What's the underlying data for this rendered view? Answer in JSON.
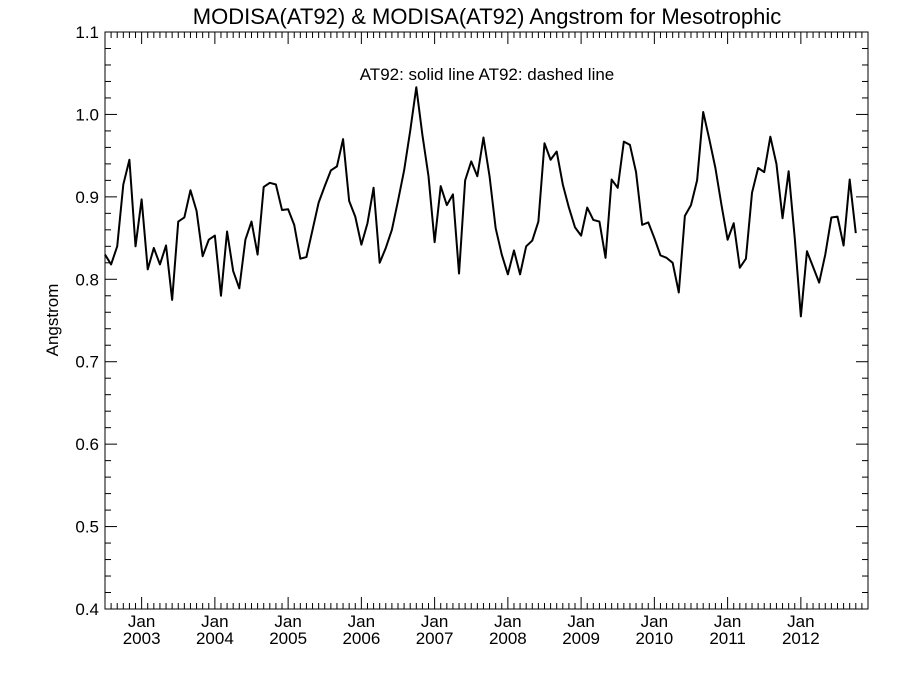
{
  "chart_data": {
    "type": "line",
    "title": "MODISA(AT92) & MODISA(AT92)  Angstrom for Mesotrophic",
    "xlabel": "",
    "ylabel": "Angstrom",
    "annotation": "AT92: solid line    AT92: dashed line",
    "ylim": [
      0.4,
      1.1
    ],
    "xlim": [
      "2002-07",
      "2012-12"
    ],
    "y_ticks": [
      "0.4",
      "0.5",
      "0.6",
      "0.7",
      "0.8",
      "0.9",
      "1.0",
      "1.1"
    ],
    "x_ticks": [
      {
        "month": "Jan",
        "year": "2003",
        "date": "2003-01"
      },
      {
        "month": "Jan",
        "year": "2004",
        "date": "2004-01"
      },
      {
        "month": "Jan",
        "year": "2005",
        "date": "2005-01"
      },
      {
        "month": "Jan",
        "year": "2006",
        "date": "2006-01"
      },
      {
        "month": "Jan",
        "year": "2007",
        "date": "2007-01"
      },
      {
        "month": "Jan",
        "year": "2008",
        "date": "2008-01"
      },
      {
        "month": "Jan",
        "year": "2009",
        "date": "2009-01"
      },
      {
        "month": "Jan",
        "year": "2010",
        "date": "2010-01"
      },
      {
        "month": "Jan",
        "year": "2011",
        "date": "2011-01"
      },
      {
        "month": "Jan",
        "year": "2012",
        "date": "2012-01"
      }
    ],
    "grid": false,
    "series": [
      {
        "style": "solid",
        "color": "#000000",
        "start": "2002-07",
        "values": [
          0.83,
          0.818,
          0.84,
          0.915,
          0.945,
          0.84,
          0.897,
          0.812,
          0.838,
          0.818,
          0.841,
          0.775,
          0.87,
          0.875,
          0.908,
          0.883,
          0.828,
          0.848,
          0.853,
          0.78,
          0.858,
          0.81,
          0.789,
          0.848,
          0.87,
          0.83,
          0.912,
          0.917,
          0.915,
          0.884,
          0.885,
          0.866,
          0.825,
          0.827,
          0.86,
          0.893,
          0.913,
          0.932,
          0.937,
          0.97,
          0.895,
          0.876,
          0.842,
          0.868,
          0.911,
          0.82,
          0.838,
          0.86,
          0.895,
          0.932,
          0.98,
          1.033,
          0.975,
          0.925,
          0.845,
          0.913,
          0.89,
          0.903,
          0.807,
          0.92,
          0.943,
          0.925,
          0.972,
          0.925,
          0.862,
          0.83,
          0.806,
          0.835,
          0.806,
          0.84,
          0.847,
          0.87,
          0.965,
          0.945,
          0.955,
          0.915,
          0.887,
          0.863,
          0.853,
          0.887,
          0.872,
          0.87,
          0.826,
          0.921,
          0.911,
          0.967,
          0.963,
          0.93,
          0.866,
          0.869,
          0.85,
          0.829,
          0.826,
          0.82,
          0.784,
          0.877,
          0.89,
          0.92,
          1.003,
          0.97,
          0.935,
          0.89,
          0.848,
          0.868,
          0.814,
          0.825,
          0.905,
          0.935,
          0.93,
          0.973,
          0.94,
          0.874,
          0.931,
          0.85,
          0.755,
          0.834,
          0.815,
          0.796,
          0.83,
          0.875,
          0.876,
          0.841,
          0.921,
          0.856
        ]
      }
    ]
  }
}
